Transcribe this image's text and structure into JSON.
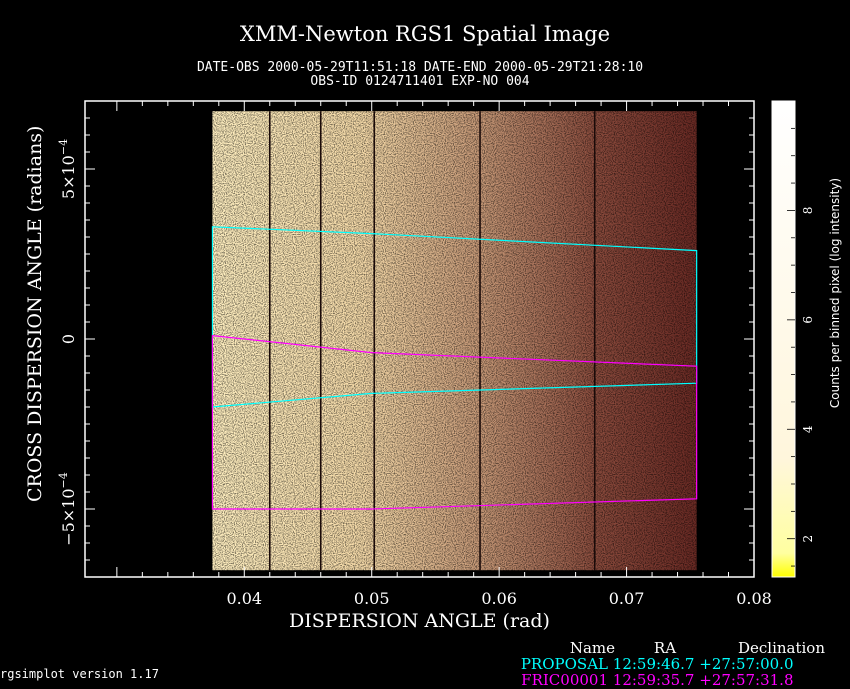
{
  "header": {
    "title": "XMM-Newton  RGS1 Spatial Image",
    "line1": "DATE-OBS 2000-05-29T11:51:18   DATE-END 2000-05-29T21:28:10",
    "line2": "OBS-ID 0124711401 EXP-NO 004"
  },
  "footer": {
    "version": "rgsimplot version 1.17",
    "coord_header": {
      "name": "Name",
      "ra": "RA",
      "dec": "Declination"
    },
    "coord_rows": [
      {
        "name": "PROPOSAL",
        "ra": "12:59:46.7",
        "dec": "+27:57:00.0",
        "color": "#00ffff"
      },
      {
        "name": "FRIC00001",
        "ra": "12:59:35.7",
        "dec": "+27:57:31.8",
        "color": "#ff00ff"
      }
    ]
  },
  "chart_data": {
    "type": "heatmap",
    "title": "XMM-Newton  RGS1 Spatial Image",
    "xlabel": "DISPERSION ANGLE (rad)",
    "ylabel": "CROSS DISPERSION ANGLE (radians)",
    "colorbar_label": "Counts per binned pixel (log intensity)",
    "xlim": [
      0.0275,
      0.08
    ],
    "ylim": [
      -0.0007,
      0.0007
    ],
    "x_ticks": [
      {
        "value": 0.04,
        "label": "0.04"
      },
      {
        "value": 0.05,
        "label": "0.05"
      },
      {
        "value": 0.06,
        "label": "0.06"
      },
      {
        "value": 0.07,
        "label": "0.07"
      },
      {
        "value": 0.08,
        "label": "0.08"
      }
    ],
    "y_ticks": [
      {
        "value": 0.0005,
        "label": "5×10",
        "exp": "−4"
      },
      {
        "value": 0,
        "label": "0",
        "exp": ""
      },
      {
        "value": -0.0005,
        "label": "−5×10",
        "exp": "−4"
      }
    ],
    "colorbar_range": [
      1.3,
      10.0
    ],
    "colorbar_ticks": [
      {
        "value": 2,
        "label": "2"
      },
      {
        "value": 4,
        "label": "4"
      },
      {
        "value": 6,
        "label": "6"
      },
      {
        "value": 8,
        "label": "8"
      }
    ],
    "image_extent": {
      "x": [
        0.0375,
        0.0755
      ],
      "y": [
        -0.00068,
        0.00067
      ]
    },
    "ccd_boundaries": [
      0.042,
      0.046,
      0.0502,
      0.0585,
      0.0675
    ],
    "regions": [
      {
        "name": "PROPOSAL",
        "color": "#00ffff",
        "upper": [
          [
            0.0375,
            0.00033
          ],
          [
            0.05,
            0.00031
          ],
          [
            0.0755,
            0.00026
          ]
        ],
        "lower": [
          [
            0.0375,
            -0.0002
          ],
          [
            0.05,
            -0.00016
          ],
          [
            0.0755,
            -0.00013
          ]
        ]
      },
      {
        "name": "FRIC00001",
        "color": "#ff00ff",
        "upper": [
          [
            0.0375,
            1e-05
          ],
          [
            0.05,
            -4e-05
          ],
          [
            0.0755,
            -8e-05
          ]
        ],
        "lower": [
          [
            0.0375,
            -0.0005
          ],
          [
            0.05,
            -0.0005
          ],
          [
            0.0755,
            -0.00047
          ]
        ]
      }
    ],
    "grid": false,
    "colormap": [
      "#5a0a0a",
      "#c47b4f",
      "#f5deb3",
      "#ffffe0",
      "#ffff00"
    ]
  }
}
